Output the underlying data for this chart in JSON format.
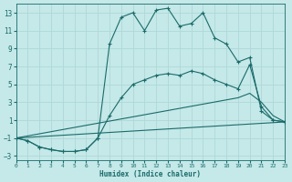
{
  "xlabel": "Humidex (Indice chaleur)",
  "bg_color": "#c5e8e8",
  "grid_color": "#afd8d8",
  "line_color": "#1a6b6b",
  "xlim": [
    0,
    23
  ],
  "ylim": [
    -3.5,
    14.0
  ],
  "xticks": [
    0,
    1,
    2,
    3,
    4,
    5,
    6,
    7,
    8,
    9,
    10,
    11,
    12,
    13,
    14,
    15,
    16,
    17,
    18,
    19,
    20,
    21,
    22,
    23
  ],
  "yticks": [
    -3,
    -1,
    1,
    3,
    5,
    7,
    9,
    11,
    13
  ],
  "lines": [
    {
      "x": [
        0,
        1,
        2,
        3,
        4,
        5,
        6,
        7,
        8,
        9,
        10,
        11,
        12,
        13,
        14,
        15,
        16,
        17,
        18,
        19,
        20,
        21,
        22,
        23
      ],
      "y": [
        -1,
        -1.3,
        -2,
        -2.3,
        -2.5,
        -2.5,
        -2.3,
        -1.0,
        9.5,
        12.5,
        13.0,
        11.0,
        13.3,
        13.5,
        11.5,
        11.8,
        13.0,
        10.2,
        9.5,
        7.5,
        8.0,
        2.0,
        1.0,
        0.8
      ],
      "marker": true
    },
    {
      "x": [
        0,
        1,
        2,
        3,
        4,
        5,
        6,
        7,
        8,
        9,
        10,
        11,
        12,
        13,
        14,
        15,
        16,
        17,
        18,
        19,
        20,
        21,
        22,
        23
      ],
      "y": [
        -1,
        -1.3,
        -2,
        -2.3,
        -2.5,
        -2.5,
        -2.3,
        -1.0,
        1.5,
        3.5,
        5.0,
        5.5,
        6.0,
        6.2,
        6.0,
        6.5,
        6.2,
        5.5,
        5.0,
        4.5,
        7.2,
        2.5,
        1.0,
        0.8
      ],
      "marker": true
    },
    {
      "x": [
        0,
        19,
        20,
        21,
        22,
        23
      ],
      "y": [
        -1,
        3.5,
        4.0,
        3.0,
        1.5,
        0.8
      ],
      "marker": false
    },
    {
      "x": [
        0,
        23
      ],
      "y": [
        -1,
        0.8
      ],
      "marker": false
    }
  ]
}
